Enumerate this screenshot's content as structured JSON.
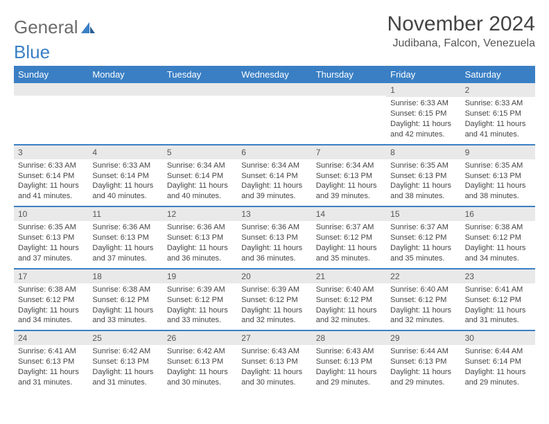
{
  "logo": {
    "text1": "General",
    "text2": "Blue"
  },
  "title": {
    "month": "November 2024",
    "location": "Judibana, Falcon, Venezuela"
  },
  "colors": {
    "accent": "#3a7fc4",
    "header_bg": "#3a7fc4",
    "daynum_bg": "#e9e9e9",
    "text": "#444444",
    "logo_gray": "#6b6b6b"
  },
  "weekdays": [
    "Sunday",
    "Monday",
    "Tuesday",
    "Wednesday",
    "Thursday",
    "Friday",
    "Saturday"
  ],
  "weeks": [
    [
      {
        "n": "",
        "sunrise": "",
        "sunset": "",
        "daylight": ""
      },
      {
        "n": "",
        "sunrise": "",
        "sunset": "",
        "daylight": ""
      },
      {
        "n": "",
        "sunrise": "",
        "sunset": "",
        "daylight": ""
      },
      {
        "n": "",
        "sunrise": "",
        "sunset": "",
        "daylight": ""
      },
      {
        "n": "",
        "sunrise": "",
        "sunset": "",
        "daylight": ""
      },
      {
        "n": "1",
        "sunrise": "Sunrise: 6:33 AM",
        "sunset": "Sunset: 6:15 PM",
        "daylight": "Daylight: 11 hours and 42 minutes."
      },
      {
        "n": "2",
        "sunrise": "Sunrise: 6:33 AM",
        "sunset": "Sunset: 6:15 PM",
        "daylight": "Daylight: 11 hours and 41 minutes."
      }
    ],
    [
      {
        "n": "3",
        "sunrise": "Sunrise: 6:33 AM",
        "sunset": "Sunset: 6:14 PM",
        "daylight": "Daylight: 11 hours and 41 minutes."
      },
      {
        "n": "4",
        "sunrise": "Sunrise: 6:33 AM",
        "sunset": "Sunset: 6:14 PM",
        "daylight": "Daylight: 11 hours and 40 minutes."
      },
      {
        "n": "5",
        "sunrise": "Sunrise: 6:34 AM",
        "sunset": "Sunset: 6:14 PM",
        "daylight": "Daylight: 11 hours and 40 minutes."
      },
      {
        "n": "6",
        "sunrise": "Sunrise: 6:34 AM",
        "sunset": "Sunset: 6:14 PM",
        "daylight": "Daylight: 11 hours and 39 minutes."
      },
      {
        "n": "7",
        "sunrise": "Sunrise: 6:34 AM",
        "sunset": "Sunset: 6:13 PM",
        "daylight": "Daylight: 11 hours and 39 minutes."
      },
      {
        "n": "8",
        "sunrise": "Sunrise: 6:35 AM",
        "sunset": "Sunset: 6:13 PM",
        "daylight": "Daylight: 11 hours and 38 minutes."
      },
      {
        "n": "9",
        "sunrise": "Sunrise: 6:35 AM",
        "sunset": "Sunset: 6:13 PM",
        "daylight": "Daylight: 11 hours and 38 minutes."
      }
    ],
    [
      {
        "n": "10",
        "sunrise": "Sunrise: 6:35 AM",
        "sunset": "Sunset: 6:13 PM",
        "daylight": "Daylight: 11 hours and 37 minutes."
      },
      {
        "n": "11",
        "sunrise": "Sunrise: 6:36 AM",
        "sunset": "Sunset: 6:13 PM",
        "daylight": "Daylight: 11 hours and 37 minutes."
      },
      {
        "n": "12",
        "sunrise": "Sunrise: 6:36 AM",
        "sunset": "Sunset: 6:13 PM",
        "daylight": "Daylight: 11 hours and 36 minutes."
      },
      {
        "n": "13",
        "sunrise": "Sunrise: 6:36 AM",
        "sunset": "Sunset: 6:13 PM",
        "daylight": "Daylight: 11 hours and 36 minutes."
      },
      {
        "n": "14",
        "sunrise": "Sunrise: 6:37 AM",
        "sunset": "Sunset: 6:12 PM",
        "daylight": "Daylight: 11 hours and 35 minutes."
      },
      {
        "n": "15",
        "sunrise": "Sunrise: 6:37 AM",
        "sunset": "Sunset: 6:12 PM",
        "daylight": "Daylight: 11 hours and 35 minutes."
      },
      {
        "n": "16",
        "sunrise": "Sunrise: 6:38 AM",
        "sunset": "Sunset: 6:12 PM",
        "daylight": "Daylight: 11 hours and 34 minutes."
      }
    ],
    [
      {
        "n": "17",
        "sunrise": "Sunrise: 6:38 AM",
        "sunset": "Sunset: 6:12 PM",
        "daylight": "Daylight: 11 hours and 34 minutes."
      },
      {
        "n": "18",
        "sunrise": "Sunrise: 6:38 AM",
        "sunset": "Sunset: 6:12 PM",
        "daylight": "Daylight: 11 hours and 33 minutes."
      },
      {
        "n": "19",
        "sunrise": "Sunrise: 6:39 AM",
        "sunset": "Sunset: 6:12 PM",
        "daylight": "Daylight: 11 hours and 33 minutes."
      },
      {
        "n": "20",
        "sunrise": "Sunrise: 6:39 AM",
        "sunset": "Sunset: 6:12 PM",
        "daylight": "Daylight: 11 hours and 32 minutes."
      },
      {
        "n": "21",
        "sunrise": "Sunrise: 6:40 AM",
        "sunset": "Sunset: 6:12 PM",
        "daylight": "Daylight: 11 hours and 32 minutes."
      },
      {
        "n": "22",
        "sunrise": "Sunrise: 6:40 AM",
        "sunset": "Sunset: 6:12 PM",
        "daylight": "Daylight: 11 hours and 32 minutes."
      },
      {
        "n": "23",
        "sunrise": "Sunrise: 6:41 AM",
        "sunset": "Sunset: 6:12 PM",
        "daylight": "Daylight: 11 hours and 31 minutes."
      }
    ],
    [
      {
        "n": "24",
        "sunrise": "Sunrise: 6:41 AM",
        "sunset": "Sunset: 6:13 PM",
        "daylight": "Daylight: 11 hours and 31 minutes."
      },
      {
        "n": "25",
        "sunrise": "Sunrise: 6:42 AM",
        "sunset": "Sunset: 6:13 PM",
        "daylight": "Daylight: 11 hours and 31 minutes."
      },
      {
        "n": "26",
        "sunrise": "Sunrise: 6:42 AM",
        "sunset": "Sunset: 6:13 PM",
        "daylight": "Daylight: 11 hours and 30 minutes."
      },
      {
        "n": "27",
        "sunrise": "Sunrise: 6:43 AM",
        "sunset": "Sunset: 6:13 PM",
        "daylight": "Daylight: 11 hours and 30 minutes."
      },
      {
        "n": "28",
        "sunrise": "Sunrise: 6:43 AM",
        "sunset": "Sunset: 6:13 PM",
        "daylight": "Daylight: 11 hours and 29 minutes."
      },
      {
        "n": "29",
        "sunrise": "Sunrise: 6:44 AM",
        "sunset": "Sunset: 6:13 PM",
        "daylight": "Daylight: 11 hours and 29 minutes."
      },
      {
        "n": "30",
        "sunrise": "Sunrise: 6:44 AM",
        "sunset": "Sunset: 6:14 PM",
        "daylight": "Daylight: 11 hours and 29 minutes."
      }
    ]
  ]
}
